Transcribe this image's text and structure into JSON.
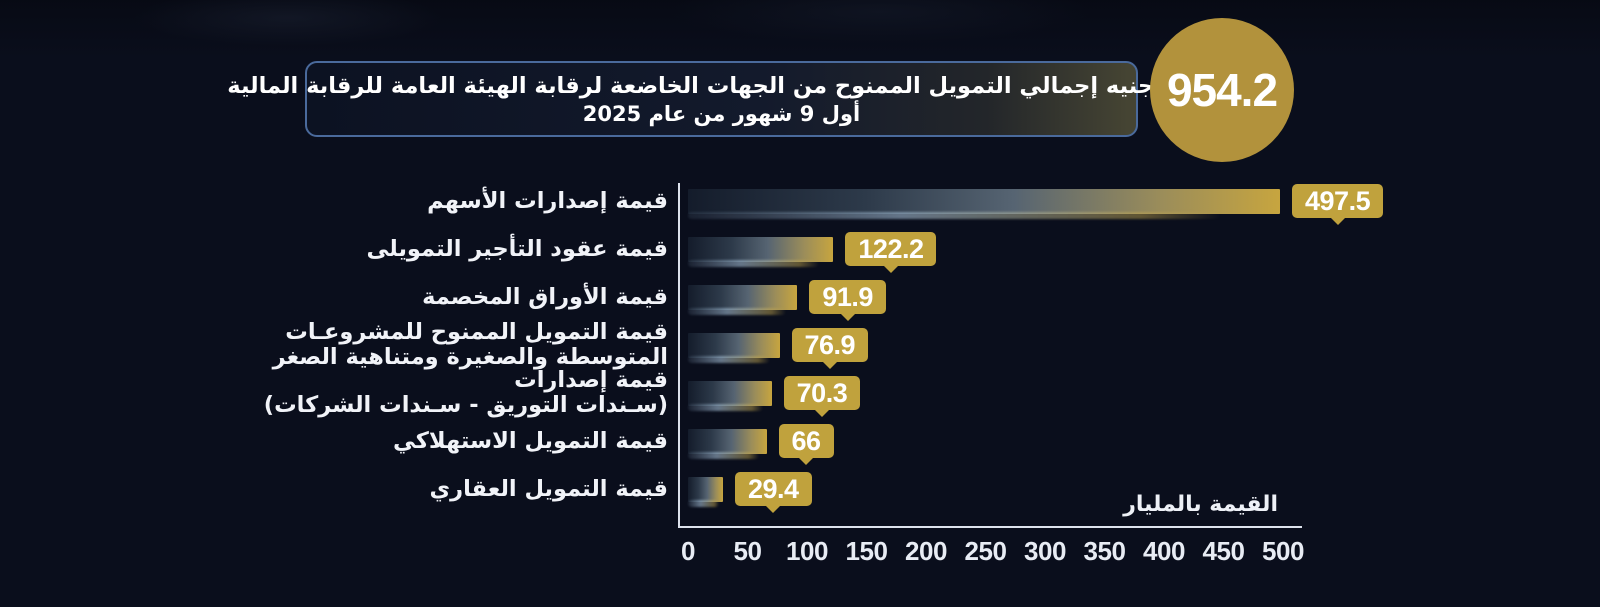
{
  "colors": {
    "background": "#0a0e1c",
    "circle_gold": "#b2923c",
    "bar_gold": "#c7a53f",
    "label_gold": "#c0a23d",
    "title_border_blue": "#4a6a9c",
    "text_white": "#ffffff"
  },
  "header": {
    "title_line1": "مليار جنيه إجمالي التمويل الممنوح من الجهات الخاضعة لرقابة الهيئة العامة للرقابة المالية",
    "title_line2": "أول 9 شهور من عام 2025",
    "total_value": "954.2"
  },
  "chart_data": {
    "type": "bar",
    "orientation": "horizontal",
    "title": "",
    "unit_label": "القيمة بالمليار",
    "xlim": [
      0,
      500
    ],
    "axis_ticks": [
      "0",
      "50",
      "100",
      "150",
      "200",
      "250",
      "300",
      "350",
      "400",
      "450",
      "500"
    ],
    "categories": [
      [
        "قيمة إصدارات الأسهم"
      ],
      [
        "قيمة عقود التأجير التمويلى"
      ],
      [
        "قيمة الأوراق المخصمة"
      ],
      [
        "قيمة التمويل الممنوح للمشروعـات",
        "المتوسطة والصغيرة ومتناهية الصغر"
      ],
      [
        "قيمة إصدارات",
        "(سـندات التوريق - سـندات الشركات)"
      ],
      [
        "قيمة التمويل الاستهلاكي"
      ],
      [
        "قيمة التمويل العقاري"
      ]
    ],
    "values": [
      497.5,
      122.2,
      91.9,
      76.9,
      70.3,
      66,
      29.4
    ],
    "value_labels": [
      "497.5",
      "122.2",
      "91.9",
      "76.9",
      "70.3",
      "66",
      "29.4"
    ],
    "legend": null,
    "grid": false
  }
}
